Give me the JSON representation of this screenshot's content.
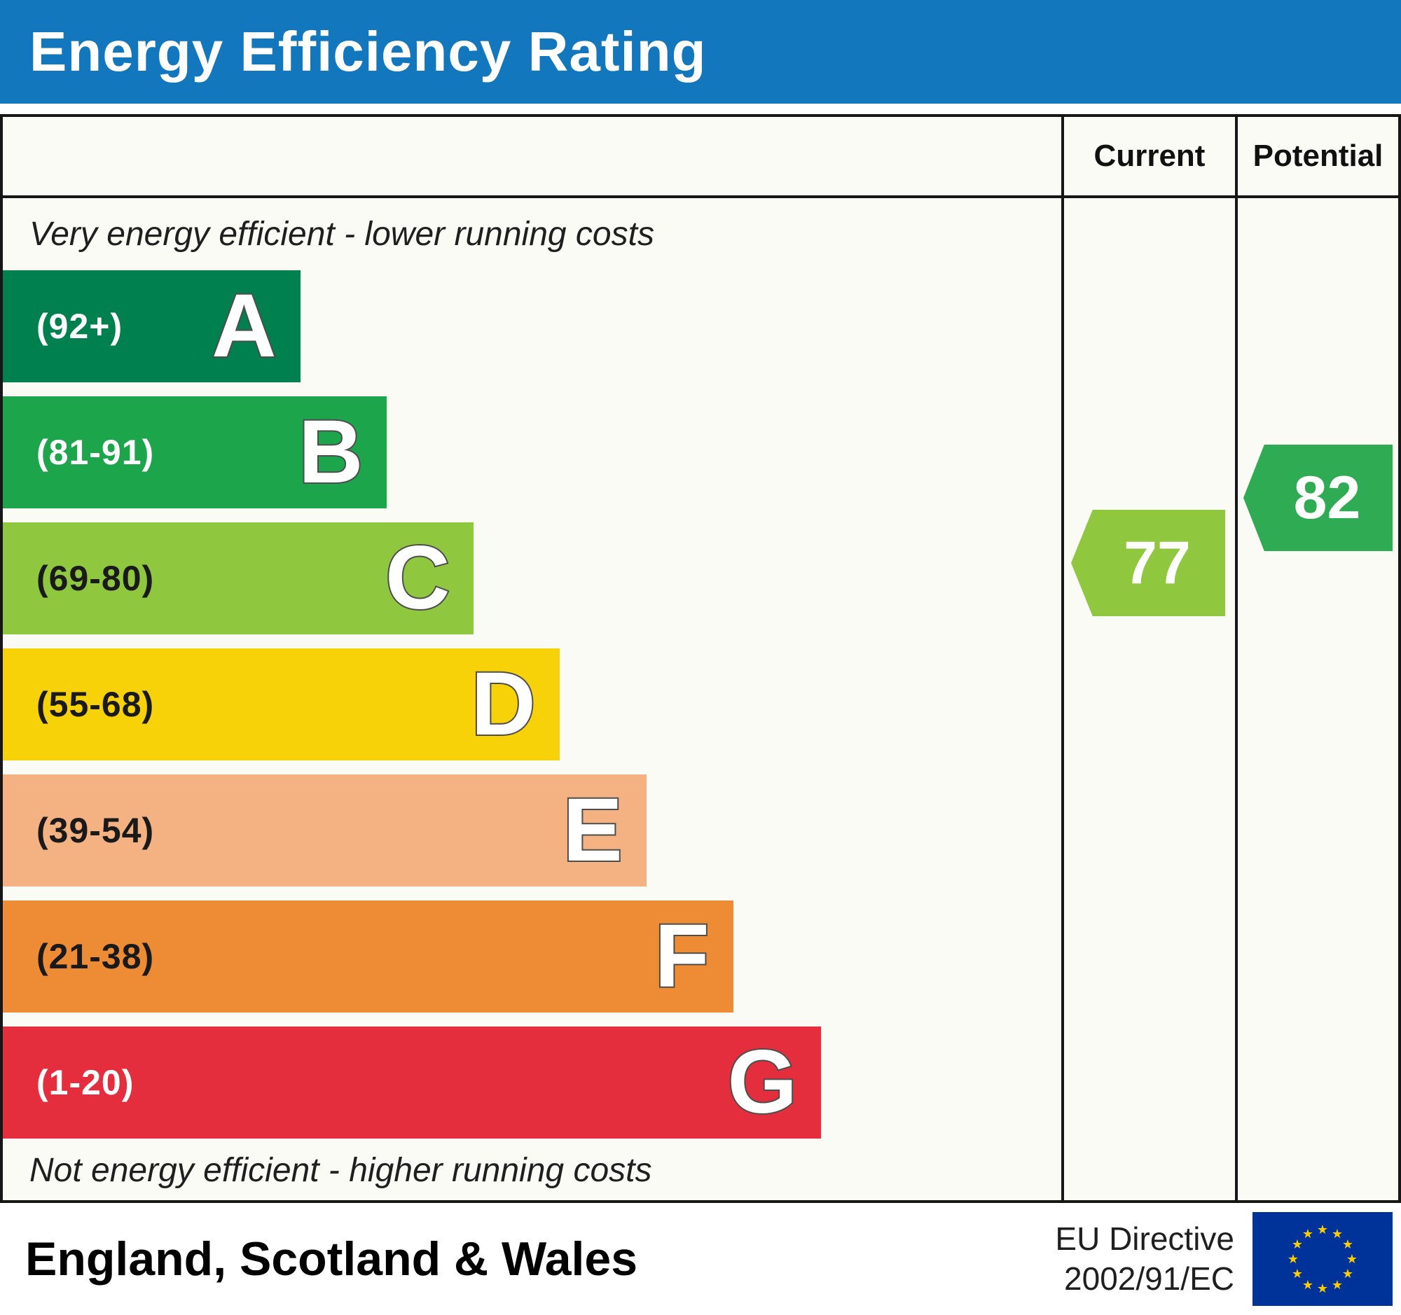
{
  "colors": {
    "title_bar": "#1377bd"
  },
  "title": "Energy Efficiency Rating",
  "header": {
    "current": "Current",
    "potential": "Potential"
  },
  "scale": {
    "top_note": "Very energy efficient - lower running costs",
    "bottom_note": "Not energy efficient - higher running costs",
    "bands": [
      {
        "letter": "A",
        "range": "(92+)",
        "color": "#00804f",
        "label_color": "#ffffff",
        "width_pct": 28.1
      },
      {
        "letter": "B",
        "range": "(81-91)",
        "color": "#1ca54b",
        "label_color": "#ffffff",
        "width_pct": 36.3
      },
      {
        "letter": "C",
        "range": "(69-80)",
        "color": "#8fc83f",
        "label_color": "#1a1a1a",
        "width_pct": 44.5
      },
      {
        "letter": "D",
        "range": "(55-68)",
        "color": "#f7d208",
        "label_color": "#1a1a1a",
        "width_pct": 52.6
      },
      {
        "letter": "E",
        "range": "(39-54)",
        "color": "#f4b181",
        "label_color": "#1a1a1a",
        "width_pct": 60.8
      },
      {
        "letter": "F",
        "range": "(21-38)",
        "color": "#ee8b35",
        "label_color": "#1a1a1a",
        "width_pct": 69.0
      },
      {
        "letter": "G",
        "range": "(1-20)",
        "color": "#e52e3d",
        "label_color": "#ffffff",
        "width_pct": 77.3
      }
    ]
  },
  "ratings": {
    "current": {
      "value": "77",
      "band": "C",
      "color": "#8fc83f"
    },
    "potential": {
      "value": "82",
      "band": "B",
      "color": "#2eab53"
    }
  },
  "footer": {
    "region": "England, Scotland & Wales",
    "directive_line1": "EU Directive",
    "directive_line2": "2002/91/EC"
  },
  "chart_data": {
    "type": "bar",
    "orientation": "horizontal",
    "title": "Energy Efficiency Rating",
    "categories": [
      "A",
      "B",
      "C",
      "D",
      "E",
      "F",
      "G"
    ],
    "category_ranges": [
      "(92+)",
      "(81-91)",
      "(69-80)",
      "(55-68)",
      "(39-54)",
      "(21-38)",
      "(1-20)"
    ],
    "bar_lengths_pct": [
      28.1,
      36.3,
      44.5,
      52.6,
      60.8,
      69.0,
      77.3
    ],
    "bar_colors": [
      "#00804f",
      "#1ca54b",
      "#8fc83f",
      "#f7d208",
      "#f4b181",
      "#ee8b35",
      "#e52e3d"
    ],
    "scale_range": [
      1,
      100
    ],
    "annotations": [
      "Very energy efficient - lower running costs",
      "Not energy efficient - higher running costs"
    ],
    "markers": [
      {
        "name": "Current",
        "value": 77,
        "band": "C",
        "color": "#8fc83f"
      },
      {
        "name": "Potential",
        "value": 82,
        "band": "B",
        "color": "#2eab53"
      }
    ],
    "legend_position": "right-columns",
    "grid": false,
    "footer_region": "England, Scotland & Wales",
    "footer_directive": "EU Directive 2002/91/EC"
  }
}
